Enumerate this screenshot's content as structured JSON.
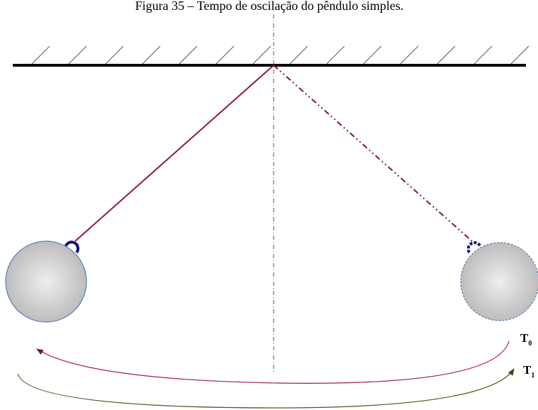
{
  "caption": "Figura 35 – Tempo de oscilação do pêndulo simples.",
  "labels": [
    {
      "main": "T",
      "sub": "0"
    },
    {
      "main": "T",
      "sub": "1"
    }
  ]
}
